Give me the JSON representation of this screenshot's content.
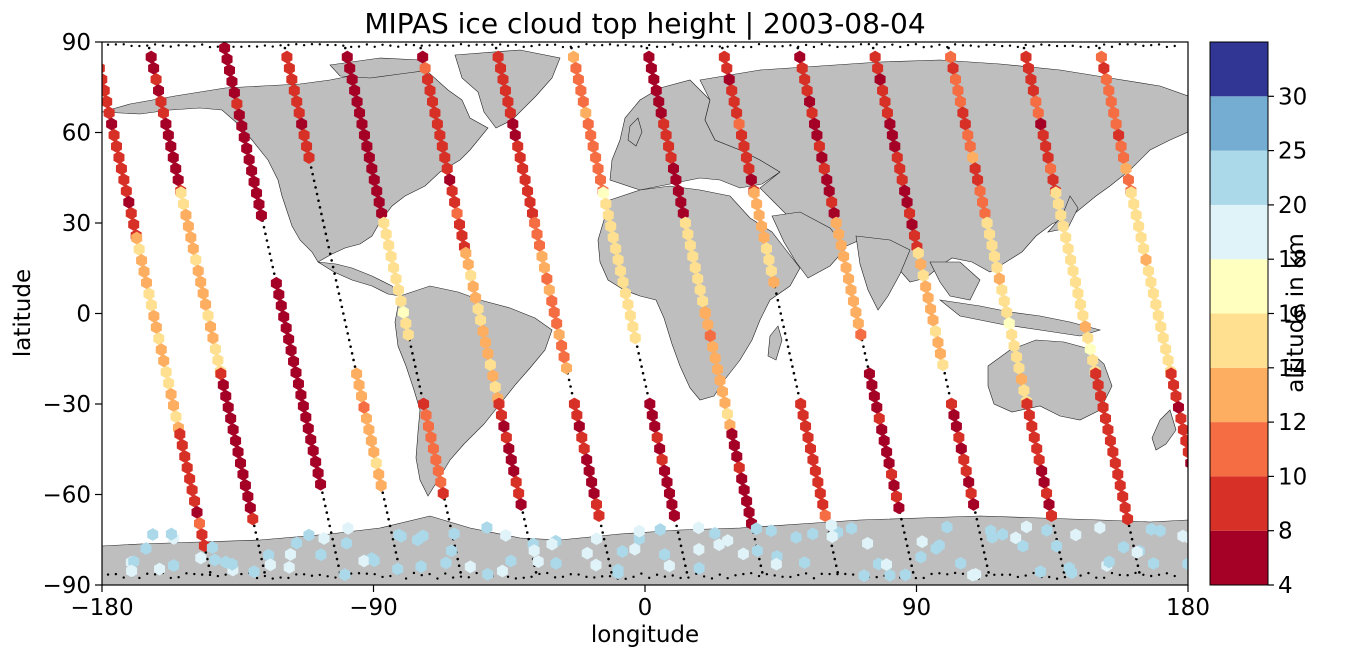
{
  "chart_data": {
    "type": "scatter",
    "title": "MIPAS ice cloud top height | 2003-08-04",
    "xlabel": "longitude",
    "ylabel": "latitude",
    "xlim": [
      -180,
      180
    ],
    "ylim": [
      -90,
      90
    ],
    "xticks": [
      -180,
      -90,
      0,
      90,
      180
    ],
    "yticks": [
      90,
      60,
      30,
      0,
      -30,
      -60,
      -90
    ],
    "basemap": "world coastlines (land in grey)",
    "marker": "hexagon",
    "colorbar": {
      "label": "altitude in km",
      "bounds": [
        4,
        8,
        10,
        12,
        14,
        16,
        18,
        20,
        25,
        30
      ],
      "tick_labels": [
        "4",
        "8",
        "10",
        "12",
        "14",
        "16",
        "18",
        "20",
        "25",
        "30"
      ],
      "colors": [
        "#a50026",
        "#d73027",
        "#f46d43",
        "#fdae61",
        "#fee090",
        "#ffffbf",
        "#e0f3f8",
        "#abd9e9",
        "#74add1",
        "#313695"
      ],
      "colormap": "RdYlBu (discrete)"
    },
    "orbits": [
      {
        "lon_eq": -163,
        "cloudy_segments": [
          [
            85,
            25,
            9
          ],
          [
            25,
            -40,
            14
          ],
          [
            -40,
            -80,
            9
          ]
        ]
      },
      {
        "lon_eq": -145,
        "cloudy_segments": [
          [
            85,
            40,
            8
          ],
          [
            40,
            -20,
            14
          ],
          [
            -20,
            -70,
            7
          ]
        ]
      },
      {
        "lon_eq": -120,
        "cloudy_segments": [
          [
            88,
            30,
            7
          ],
          [
            10,
            -60,
            7
          ]
        ]
      },
      {
        "lon_eq": -100,
        "cloudy_segments": [
          [
            85,
            50,
            9
          ],
          [
            -20,
            -60,
            13
          ]
        ]
      },
      {
        "lon_eq": -80,
        "cloudy_segments": [
          [
            85,
            30,
            7
          ],
          [
            30,
            -10,
            15
          ],
          [
            -30,
            -60,
            10
          ]
        ]
      },
      {
        "lon_eq": -55,
        "cloudy_segments": [
          [
            85,
            20,
            9
          ],
          [
            20,
            -30,
            14
          ],
          [
            -30,
            -65,
            8
          ]
        ]
      },
      {
        "lon_eq": -30,
        "cloudy_segments": [
          [
            85,
            30,
            9
          ],
          [
            30,
            -20,
            12
          ],
          [
            -30,
            -70,
            8
          ]
        ]
      },
      {
        "lon_eq": -5,
        "cloudy_segments": [
          [
            85,
            40,
            11
          ],
          [
            40,
            -10,
            15
          ],
          [
            -30,
            -70,
            7
          ]
        ]
      },
      {
        "lon_eq": 20,
        "cloudy_segments": [
          [
            85,
            30,
            8
          ],
          [
            30,
            0,
            15
          ],
          [
            0,
            -40,
            13
          ],
          [
            -40,
            -70,
            7
          ]
        ]
      },
      {
        "lon_eq": 45,
        "cloudy_segments": [
          [
            85,
            40,
            9
          ],
          [
            40,
            10,
            14
          ],
          [
            -30,
            -70,
            10
          ]
        ]
      },
      {
        "lon_eq": 70,
        "cloudy_segments": [
          [
            85,
            30,
            8
          ],
          [
            30,
            -10,
            13
          ],
          [
            -20,
            -65,
            8
          ]
        ]
      },
      {
        "lon_eq": 95,
        "cloudy_segments": [
          [
            85,
            20,
            8
          ],
          [
            20,
            -20,
            14
          ],
          [
            -30,
            -65,
            8
          ]
        ]
      },
      {
        "lon_eq": 120,
        "cloudy_segments": [
          [
            85,
            30,
            11
          ],
          [
            30,
            -30,
            15
          ],
          [
            -30,
            -70,
            8
          ]
        ]
      },
      {
        "lon_eq": 145,
        "cloudy_segments": [
          [
            85,
            40,
            9
          ],
          [
            40,
            -20,
            15
          ],
          [
            -20,
            -70,
            9
          ]
        ]
      },
      {
        "lon_eq": 170,
        "cloudy_segments": [
          [
            85,
            40,
            11
          ],
          [
            40,
            -20,
            15
          ],
          [
            -20,
            -65,
            8
          ]
        ]
      }
    ],
    "antarctic_high_clouds": {
      "lat_range": [
        -70,
        -87
      ],
      "altitude_range_km": [
        18,
        24
      ]
    }
  }
}
